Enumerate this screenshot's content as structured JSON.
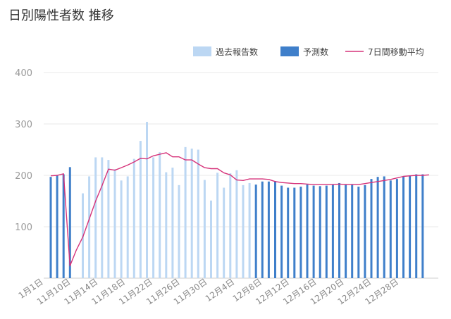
{
  "title": "日別陽性者数 推移",
  "colors": {
    "past": "#bcd7f3",
    "forecast": "#3f7fca",
    "avg": "#d6337a",
    "grid": "#e8e8e8"
  },
  "chart_data": {
    "type": "bar",
    "title": "日別陽性者数 推移",
    "ylim": [
      0,
      400
    ],
    "yticks": [
      100,
      200,
      300,
      400
    ],
    "grid": true,
    "legend_position": "top-right",
    "xtick_labels": [
      "1月1日",
      "11月10日",
      "11月14日",
      "11月18日",
      "11月22日",
      "11月26日",
      "11月30日",
      "12月4日",
      "12月8日",
      "12月12日",
      "12月16日",
      "12月20日",
      "12月24日",
      "12月28日"
    ],
    "series": [
      {
        "name": "過去報告数",
        "type": "bar",
        "values": [
          null,
          null,
          null,
          null,
          null,
          165,
          198,
          235,
          235,
          230,
          212,
          190,
          198,
          232,
          267,
          304,
          235,
          245,
          206,
          215,
          181,
          255,
          252,
          250,
          191,
          151,
          205,
          176,
          204,
          210,
          181,
          185,
          null,
          null,
          null,
          null,
          null,
          null,
          null,
          null,
          null,
          null,
          null,
          null,
          null,
          null,
          null,
          null,
          null,
          null,
          null,
          null,
          null,
          null,
          null,
          null,
          null,
          null,
          null,
          null
        ]
      },
      {
        "name": "予測数",
        "type": "bar",
        "values": [
          197,
          200,
          202,
          216,
          null,
          null,
          null,
          null,
          null,
          null,
          null,
          null,
          null,
          null,
          null,
          null,
          null,
          null,
          null,
          null,
          null,
          null,
          null,
          null,
          null,
          null,
          null,
          null,
          null,
          null,
          null,
          null,
          182,
          188,
          188,
          189,
          180,
          176,
          176,
          178,
          182,
          180,
          179,
          180,
          182,
          185,
          183,
          183,
          178,
          181,
          193,
          197,
          198,
          190,
          193,
          198,
          200,
          202,
          202,
          null
        ]
      },
      {
        "name": "7日間移動平均",
        "type": "line",
        "values": [
          199,
          200,
          203,
          24,
          55,
          80,
          115,
          150,
          180,
          212,
          210,
          215,
          220,
          226,
          233,
          232,
          238,
          241,
          244,
          236,
          236,
          230,
          230,
          222,
          215,
          213,
          213,
          205,
          201,
          191,
          190,
          193,
          193,
          193,
          192,
          188,
          186,
          185,
          184,
          184,
          183,
          182,
          182,
          182,
          182,
          183,
          182,
          182,
          182,
          184,
          186,
          188,
          190,
          192,
          195,
          198,
          199,
          200,
          200,
          201
        ]
      }
    ]
  }
}
